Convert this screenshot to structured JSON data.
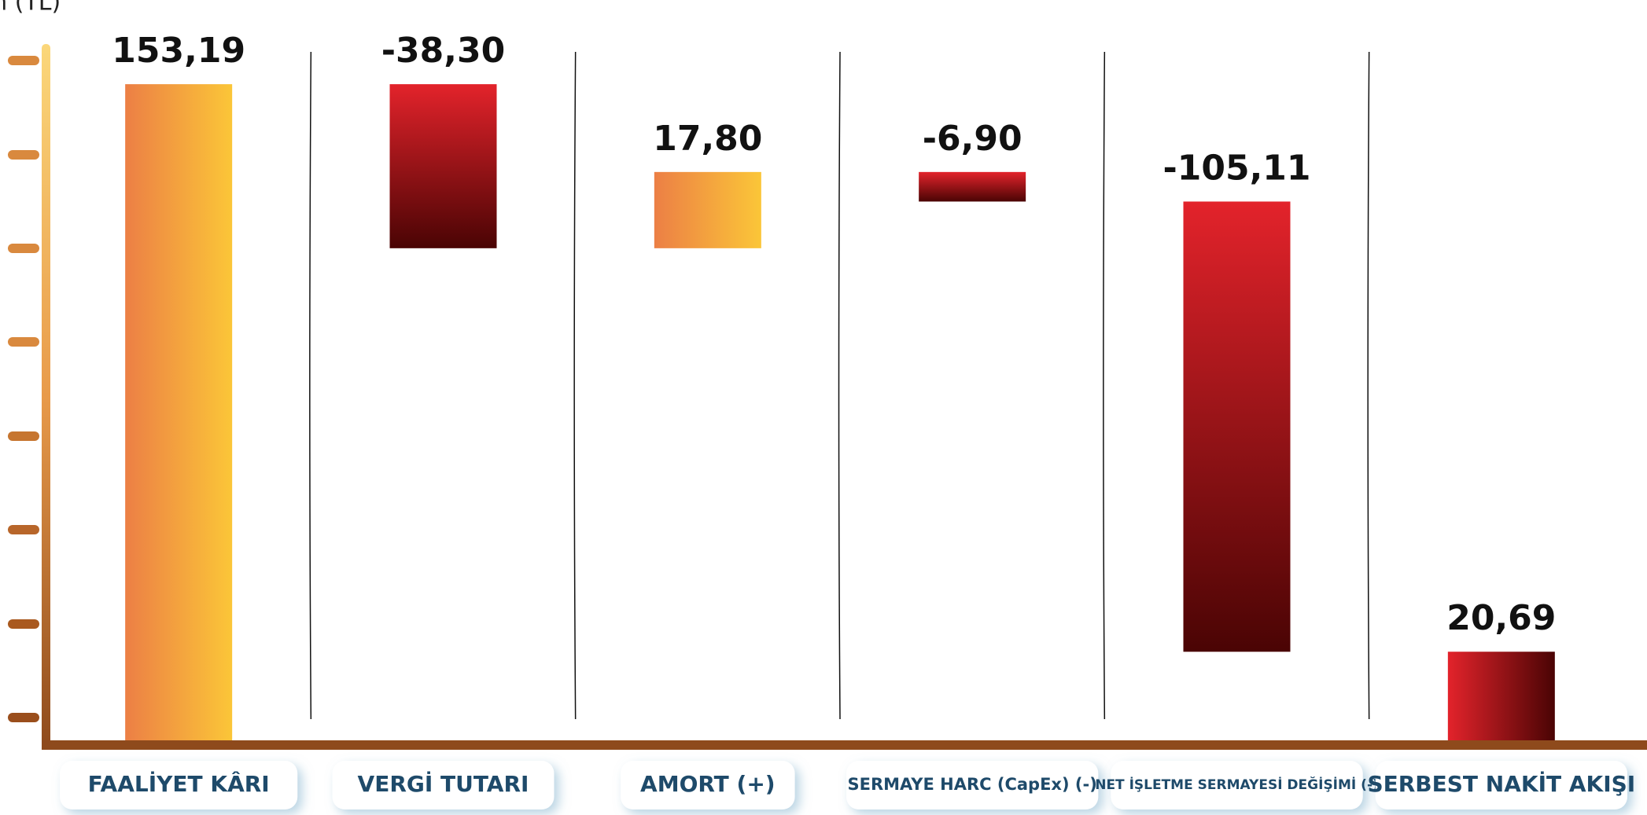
{
  "chart_data": {
    "type": "waterfall",
    "y_label": "m (TL)",
    "categories": [
      "FAALİYET KÂRI",
      "VERGİ TUTARI",
      "AMORT (+)",
      "SERMAYE HARC (CapEx) (-)",
      "NET İŞLETME SERMAYESİ DEĞİŞİMİ (-)",
      "SERBEST NAKİT AKIŞI"
    ],
    "values": [
      153.19,
      -38.3,
      17.8,
      -6.9,
      -105.11,
      20.69
    ],
    "value_labels": [
      "153,19",
      "-38,30",
      "17,80",
      "-6,90",
      "-105,11",
      "20,69"
    ],
    "total_index": 5,
    "increase_colors": [
      "#ec7f45",
      "#fbc638"
    ],
    "decrease_colors": [
      "#e3232b",
      "#4a0404"
    ],
    "ylim": [
      0,
      160
    ]
  }
}
